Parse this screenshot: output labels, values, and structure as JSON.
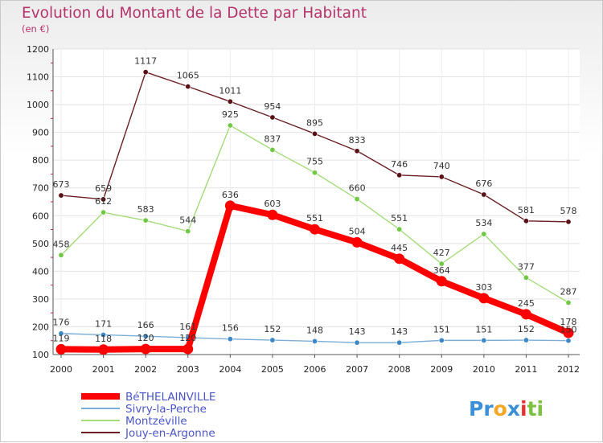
{
  "chart_data": {
    "type": "line",
    "title": "Evolution du Montant de la Dette par Habitant",
    "subtitle": "(en €)",
    "xlabel": "",
    "ylabel": "",
    "ylim": [
      100,
      1200
    ],
    "yticks": [
      100,
      200,
      300,
      400,
      500,
      600,
      700,
      800,
      900,
      1000,
      1100,
      1200
    ],
    "x": [
      "2000",
      "2001",
      "2002",
      "2003",
      "2004",
      "2005",
      "2006",
      "2007",
      "2008",
      "2009",
      "2010",
      "2011",
      "2012"
    ],
    "grid": true,
    "legend_position": "bottom-left",
    "series": [
      {
        "name": "Jouy-en-Argonne",
        "color": "#6b1f24",
        "marker": "#5a1116",
        "values": [
          673,
          659,
          1117,
          1065,
          1011,
          954,
          895,
          833,
          746,
          740,
          676,
          581,
          578
        ]
      },
      {
        "name": "Montzéville",
        "color": "#a5dc7a",
        "marker": "#6fc944",
        "values": [
          458,
          612,
          583,
          544,
          925,
          837,
          755,
          660,
          551,
          427,
          534,
          377,
          287
        ]
      },
      {
        "name": "Sivry-la-Perche",
        "color": "#7aaed6",
        "marker": "#3d87c6",
        "values": [
          176,
          171,
          166,
          161,
          156,
          152,
          148,
          143,
          143,
          151,
          151,
          152,
          150
        ]
      },
      {
        "name": "BéTHELAINVILLE",
        "color": "#ff0000",
        "marker": "#ff0000",
        "values": [
          119,
          118,
          120,
          120,
          636,
          603,
          551,
          504,
          445,
          364,
          303,
          245,
          178
        ]
      }
    ]
  },
  "logo": {
    "parts": [
      "Pr",
      "o",
      "x",
      "i",
      "ti"
    ],
    "colors": [
      "#3b8fd6",
      "#f5a623",
      "#3b8fd6",
      "#e8312f",
      "#7cc142"
    ]
  }
}
